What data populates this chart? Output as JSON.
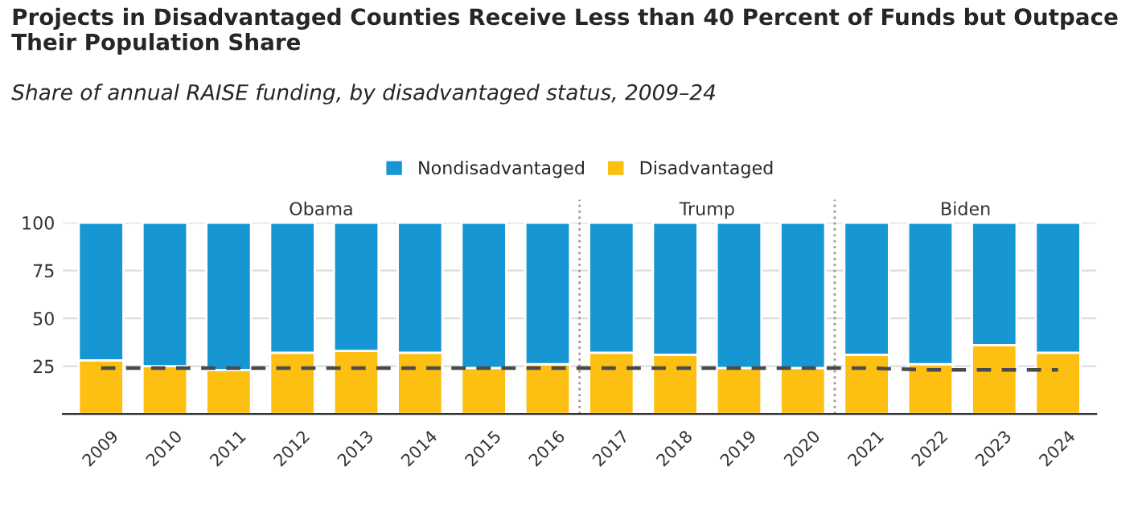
{
  "chart_data": {
    "type": "bar",
    "title": "Projects in Disadvantaged Counties Receive Less than 40 Percent of Funds but Outpace Their Population Share",
    "subtitle": "Share of annual RAISE funding, by disadvantaged status, 2009–24",
    "x": [
      2009,
      2010,
      2011,
      2012,
      2013,
      2014,
      2015,
      2016,
      2017,
      2018,
      2019,
      2020,
      2021,
      2022,
      2023,
      2024
    ],
    "xlim": [
      2008.4,
      2024.6
    ],
    "xticks": [
      2009,
      2010,
      2011,
      2012,
      2013,
      2014,
      2015,
      2016,
      2017,
      2018,
      2019,
      2020,
      2021,
      2022,
      2023,
      2024
    ],
    "stacked": true,
    "series": [
      {
        "name": "Disadvantaged",
        "color": "#fdbf11",
        "values": [
          28,
          25,
          23,
          32,
          33,
          32,
          24,
          26,
          32,
          31,
          24,
          24,
          31,
          26,
          36,
          32
        ]
      },
      {
        "name": "Nondisadvantaged",
        "color": "#1696d2",
        "values": [
          72,
          75,
          77,
          68,
          67,
          68,
          76,
          74,
          68,
          69,
          76,
          76,
          69,
          74,
          64,
          68
        ]
      },
      {
        "type": "line",
        "color": "#4a4a4a",
        "line_style": "dashed",
        "values": [
          24,
          24,
          24,
          24,
          24,
          24,
          24,
          24,
          24,
          24,
          24,
          24,
          24,
          23,
          23,
          23
        ]
      }
    ],
    "ylim": [
      0,
      100
    ],
    "yticks": [
      25,
      50,
      75,
      100
    ],
    "grid": "y",
    "legend": "top",
    "ref_lines": [
      {
        "axis": "x",
        "value": 2016.5,
        "color": "#999999",
        "line_style": "dotted"
      },
      {
        "axis": "x",
        "value": 2020.5,
        "color": "#999999",
        "line_style": "dotted"
      }
    ],
    "annotations": [
      "Obama",
      "Trump",
      "Biden"
    ]
  }
}
